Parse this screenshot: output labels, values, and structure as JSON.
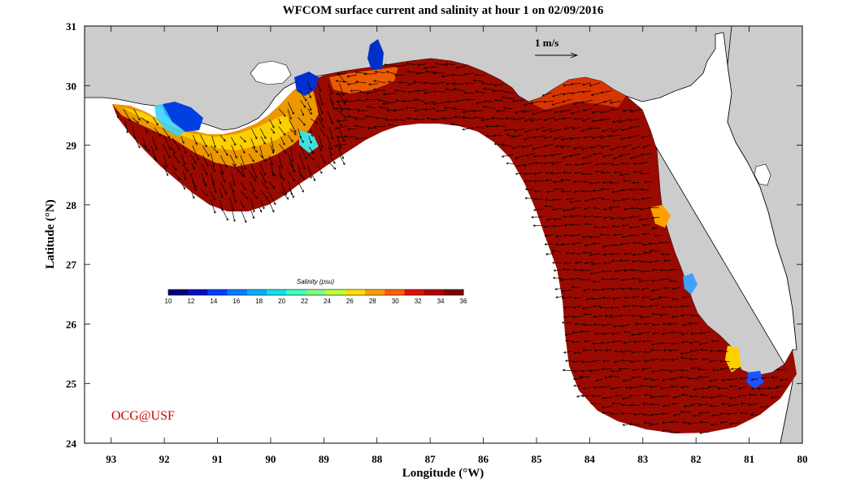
{
  "title": "WFCOM surface current and salinity at hour 1 on 02/09/2016",
  "x_axis": {
    "label": "Longitude (°W)",
    "ticks": [
      "93",
      "92",
      "91",
      "90",
      "89",
      "88",
      "87",
      "86",
      "85",
      "84",
      "83",
      "82",
      "81",
      "80"
    ]
  },
  "y_axis": {
    "label": "Latitude (°N)",
    "ticks": [
      "31",
      "30",
      "29",
      "28",
      "27",
      "26",
      "25",
      "24"
    ]
  },
  "colorbar": {
    "title": "Salinity (psu)",
    "ticks": [
      "10",
      "12",
      "14",
      "16",
      "18",
      "20",
      "22",
      "24",
      "26",
      "28",
      "30",
      "32",
      "34",
      "36"
    ],
    "range": [
      10,
      36
    ],
    "colors": [
      "#000080",
      "#0010c8",
      "#0040ff",
      "#0080ff",
      "#00b0ff",
      "#10e0f0",
      "#40ffc0",
      "#80ff80",
      "#c0ff40",
      "#ffe000",
      "#ffa000",
      "#ff6000",
      "#e01000",
      "#b00000",
      "#800000"
    ]
  },
  "scale_vector": {
    "label": "1 m/s"
  },
  "credit": {
    "text": "OCG@USF",
    "color": "#cc0000"
  },
  "map_extent": {
    "lon": [
      -93.5,
      -80
    ],
    "lat": [
      24,
      31
    ]
  },
  "colors": {
    "land": "#cccccc",
    "ocean_bg": "#ffffff",
    "high_salinity": "#9a0a00",
    "coast_line": "#000000"
  }
}
